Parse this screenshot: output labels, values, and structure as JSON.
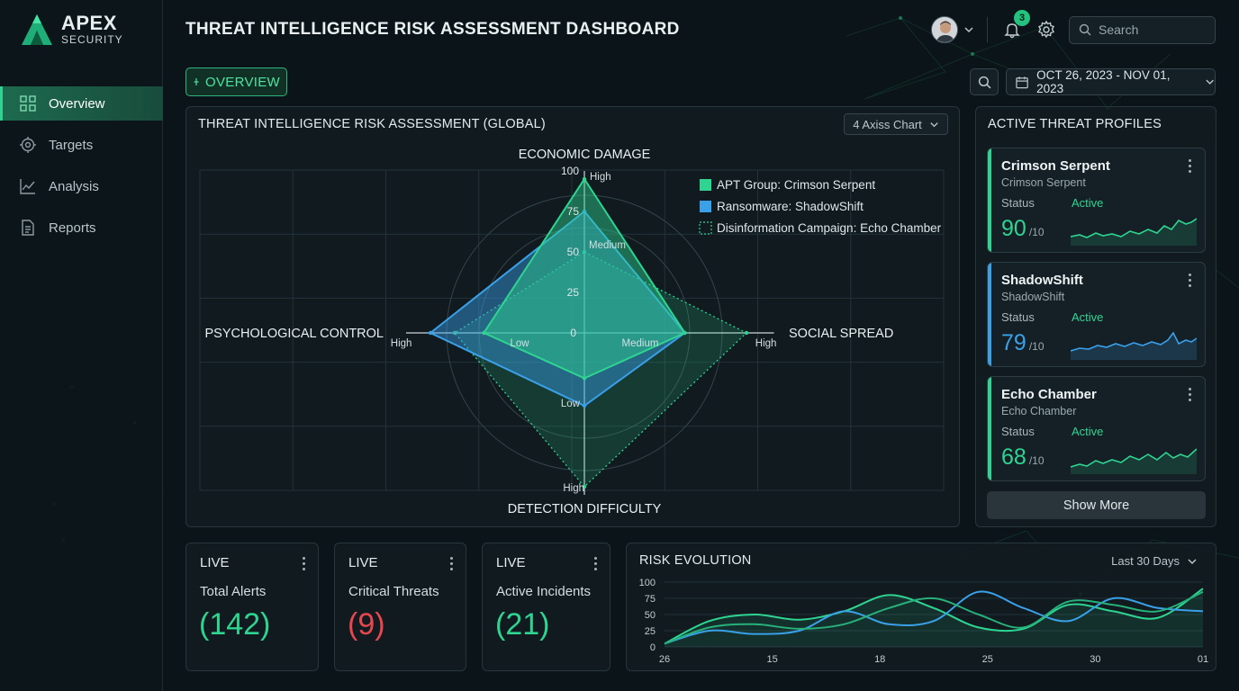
{
  "brand": {
    "name_line1": "APEX",
    "name_line2": "SECURITY"
  },
  "sidebar": {
    "items": [
      {
        "label": "Overview",
        "active": true
      },
      {
        "label": "Targets",
        "active": false
      },
      {
        "label": "Analysis",
        "active": false
      },
      {
        "label": "Reports",
        "active": false
      }
    ]
  },
  "header": {
    "title": "THREAT INTELLIGENCE RISK ASSESSMENT DASHBOARD",
    "notifications_count": "3",
    "search_placeholder": "Search"
  },
  "toolbar": {
    "overview_label": "OVERVIEW",
    "date_range": "OCT 26, 2023 - NOV 01, 2023"
  },
  "radar_panel": {
    "title": "THREAT INTELLIGENCE RISK ASSESSMENT (GLOBAL)",
    "chart_type_label": "4 Axiss Chart"
  },
  "profiles_panel": {
    "title": "ACTIVE THREAT PROFILES",
    "status_label": "Status",
    "score_suffix": "/10",
    "profiles": [
      {
        "name": "Crimson Serpent",
        "subtitle": "Crimson Serpent",
        "status": "Active",
        "score": "90",
        "color": "#2fd491"
      },
      {
        "name": "ShadowShift",
        "subtitle": "ShadowShift",
        "status": "Active",
        "score": "79",
        "color": "#3aa0e8"
      },
      {
        "name": "Echo Chamber",
        "subtitle": "Echo Chamber",
        "status": "Active",
        "score": "68",
        "color": "#2fd491"
      }
    ],
    "show_more_label": "Show More"
  },
  "kpis": [
    {
      "live": "LIVE",
      "label": "Total Alerts",
      "value": "(142)",
      "color": "#2fd491"
    },
    {
      "live": "LIVE",
      "label": "Critical Threats",
      "value": "(9)",
      "color": "#e8474f"
    },
    {
      "live": "LIVE",
      "label": "Active Incidents",
      "value": "(21)",
      "color": "#2fd491"
    }
  ],
  "evolution": {
    "title": "RISK EVOLUTION",
    "range_label": "Last 30 Days"
  },
  "chart_data": [
    {
      "type": "radar",
      "axes": [
        "ECONOMIC DAMAGE",
        "SOCIAL SPREAD",
        "DETECTION DIFFICULTY",
        "PSYCHOLOGICAL CONTROL"
      ],
      "scale": [
        0,
        100
      ],
      "tick_values": [
        "0",
        "25",
        "50",
        "75",
        "100"
      ],
      "level_labels": [
        "Low",
        "Medium",
        "High"
      ],
      "legend_position": "top-right",
      "series": [
        {
          "name": "APT Group: Crimson Serpent",
          "color": "#2fd491",
          "style": "solid",
          "values": [
            95,
            62,
            28,
            62
          ]
        },
        {
          "name": "Ransomware: ShadowShift",
          "color": "#3aa0e8",
          "style": "solid",
          "values": [
            75,
            62,
            45,
            95
          ]
        },
        {
          "name": "Disinformation Campaign: Echo Chamber",
          "color": "#2fd491",
          "style": "dotted",
          "values": [
            50,
            100,
            95,
            80
          ]
        }
      ]
    },
    {
      "type": "line",
      "title": "RISK EVOLUTION",
      "x_ticks": [
        "26",
        "15",
        "18",
        "25",
        "30",
        "01"
      ],
      "y_ticks": [
        0,
        25,
        50,
        75,
        100
      ],
      "ylim": [
        0,
        100
      ],
      "series": [
        {
          "color": "#2fd491",
          "values": [
            5,
            40,
            50,
            42,
            55,
            80,
            60,
            30,
            28,
            65,
            55,
            45,
            90
          ]
        },
        {
          "color": "#3aa0e8",
          "values": [
            5,
            25,
            20,
            25,
            55,
            35,
            40,
            85,
            60,
            40,
            75,
            60,
            55
          ]
        },
        {
          "color": "#27b07a",
          "values": [
            5,
            30,
            35,
            28,
            35,
            60,
            75,
            50,
            30,
            70,
            65,
            55,
            85
          ]
        }
      ]
    }
  ]
}
